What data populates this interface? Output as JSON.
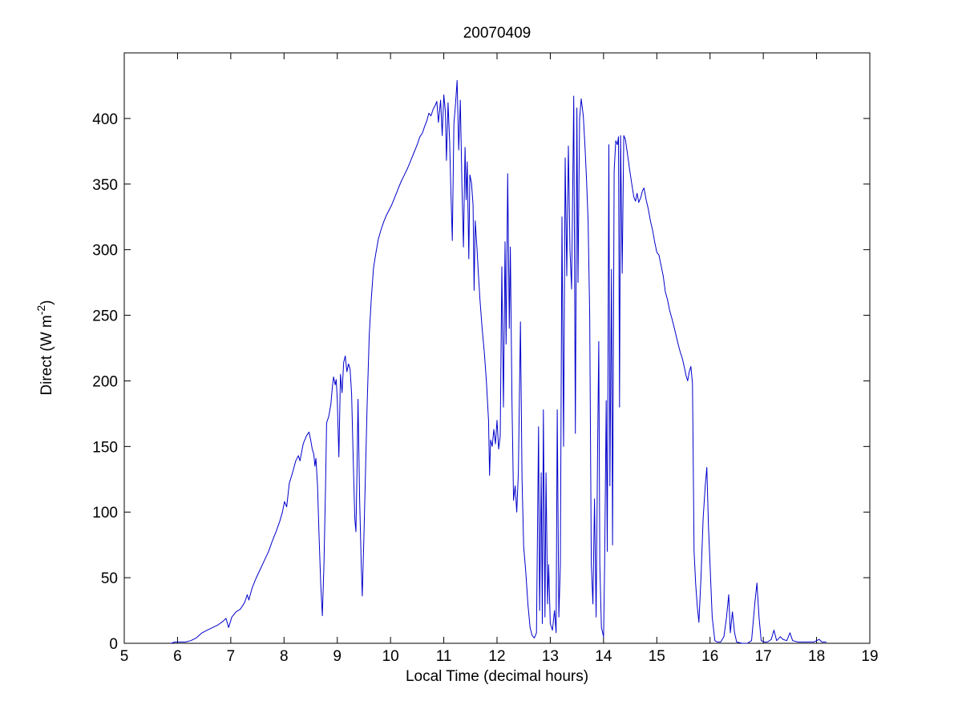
{
  "figure": {
    "title": "20070409",
    "xlabel": "Local Time (decimal hours)",
    "ylabel_parts": {
      "main": "Direct (W m",
      "sup": "-2",
      "end": ")"
    }
  },
  "chart_data": {
    "type": "line",
    "title": "20070409",
    "xlabel": "Local Time (decimal hours)",
    "ylabel": "Direct (W m^-2)",
    "xlim": [
      5,
      19
    ],
    "ylim": [
      0,
      450
    ],
    "x_ticks": [
      5,
      6,
      7,
      8,
      9,
      10,
      11,
      12,
      13,
      14,
      15,
      16,
      17,
      18,
      19
    ],
    "y_ticks": [
      0,
      50,
      100,
      150,
      200,
      250,
      300,
      350,
      400
    ],
    "grid": false,
    "legend": null,
    "line_color": "#0000CC",
    "axis_color": "#000000",
    "background": "#FFFFFF",
    "series": [
      {
        "name": "direct_irradiance",
        "points": [
          [
            5.88,
            0
          ],
          [
            5.95,
            1
          ],
          [
            6.05,
            1
          ],
          [
            6.15,
            1
          ],
          [
            6.25,
            2
          ],
          [
            6.35,
            4
          ],
          [
            6.46,
            8
          ],
          [
            6.56,
            10
          ],
          [
            6.66,
            12
          ],
          [
            6.76,
            14
          ],
          [
            6.86,
            17
          ],
          [
            6.91,
            19
          ],
          [
            6.96,
            12
          ],
          [
            7.02,
            20
          ],
          [
            7.1,
            24
          ],
          [
            7.18,
            26
          ],
          [
            7.26,
            31
          ],
          [
            7.31,
            37
          ],
          [
            7.34,
            33
          ],
          [
            7.4,
            42
          ],
          [
            7.48,
            50
          ],
          [
            7.56,
            57
          ],
          [
            7.64,
            64
          ],
          [
            7.71,
            70
          ],
          [
            7.78,
            78
          ],
          [
            7.85,
            85
          ],
          [
            7.92,
            93
          ],
          [
            7.97,
            100
          ],
          [
            8.01,
            108
          ],
          [
            8.05,
            104
          ],
          [
            8.1,
            122
          ],
          [
            8.16,
            130
          ],
          [
            8.22,
            139
          ],
          [
            8.27,
            143
          ],
          [
            8.3,
            139
          ],
          [
            8.36,
            152
          ],
          [
            8.42,
            158
          ],
          [
            8.47,
            161
          ],
          [
            8.5,
            155
          ],
          [
            8.53,
            148
          ],
          [
            8.56,
            144
          ],
          [
            8.58,
            135
          ],
          [
            8.6,
            141
          ],
          [
            8.63,
            120
          ],
          [
            8.66,
            80
          ],
          [
            8.69,
            45
          ],
          [
            8.72,
            21
          ],
          [
            8.75,
            60
          ],
          [
            8.78,
            120
          ],
          [
            8.8,
            168
          ],
          [
            8.84,
            173
          ],
          [
            8.88,
            182
          ],
          [
            8.91,
            196
          ],
          [
            8.93,
            203
          ],
          [
            8.96,
            197
          ],
          [
            8.98,
            201
          ],
          [
            9.0,
            186
          ],
          [
            9.03,
            142
          ],
          [
            9.06,
            205
          ],
          [
            9.09,
            191
          ],
          [
            9.12,
            214
          ],
          [
            9.15,
            219
          ],
          [
            9.18,
            207
          ],
          [
            9.21,
            213
          ],
          [
            9.24,
            209
          ],
          [
            9.27,
            190
          ],
          [
            9.3,
            140
          ],
          [
            9.33,
            95
          ],
          [
            9.35,
            85
          ],
          [
            9.37,
            130
          ],
          [
            9.39,
            186
          ],
          [
            9.42,
            110
          ],
          [
            9.45,
            60
          ],
          [
            9.47,
            36
          ],
          [
            9.5,
            80
          ],
          [
            9.53,
            130
          ],
          [
            9.56,
            180
          ],
          [
            9.6,
            235
          ],
          [
            9.64,
            263
          ],
          [
            9.68,
            286
          ],
          [
            9.72,
            296
          ],
          [
            9.77,
            308
          ],
          [
            9.82,
            315
          ],
          [
            9.87,
            321
          ],
          [
            9.92,
            326
          ],
          [
            9.97,
            330
          ],
          [
            10.02,
            334
          ],
          [
            10.08,
            340
          ],
          [
            10.14,
            346
          ],
          [
            10.2,
            352
          ],
          [
            10.26,
            357
          ],
          [
            10.32,
            362
          ],
          [
            10.38,
            368
          ],
          [
            10.44,
            374
          ],
          [
            10.5,
            380
          ],
          [
            10.55,
            386
          ],
          [
            10.6,
            389
          ],
          [
            10.64,
            394
          ],
          [
            10.68,
            398
          ],
          [
            10.72,
            404
          ],
          [
            10.76,
            402
          ],
          [
            10.8,
            407
          ],
          [
            10.84,
            410
          ],
          [
            10.87,
            413
          ],
          [
            10.9,
            397
          ],
          [
            10.94,
            414
          ],
          [
            10.97,
            387
          ],
          [
            11.0,
            418
          ],
          [
            11.03,
            405
          ],
          [
            11.05,
            368
          ],
          [
            11.08,
            412
          ],
          [
            11.11,
            382
          ],
          [
            11.13,
            350
          ],
          [
            11.16,
            307
          ],
          [
            11.19,
            396
          ],
          [
            11.22,
            411
          ],
          [
            11.25,
            429
          ],
          [
            11.28,
            376
          ],
          [
            11.31,
            414
          ],
          [
            11.34,
            350
          ],
          [
            11.37,
            302
          ],
          [
            11.4,
            378
          ],
          [
            11.42,
            338
          ],
          [
            11.44,
            367
          ],
          [
            11.47,
            293
          ],
          [
            11.49,
            357
          ],
          [
            11.52,
            351
          ],
          [
            11.55,
            334
          ],
          [
            11.57,
            269
          ],
          [
            11.59,
            322
          ],
          [
            11.62,
            303
          ],
          [
            11.65,
            281
          ],
          [
            11.68,
            262
          ],
          [
            11.72,
            240
          ],
          [
            11.76,
            222
          ],
          [
            11.8,
            200
          ],
          [
            11.84,
            170
          ],
          [
            11.86,
            128
          ],
          [
            11.88,
            155
          ],
          [
            11.91,
            150
          ],
          [
            11.94,
            163
          ],
          [
            11.97,
            152
          ],
          [
            12.0,
            170
          ],
          [
            12.03,
            148
          ],
          [
            12.06,
            158
          ],
          [
            12.09,
            287
          ],
          [
            12.12,
            180
          ],
          [
            12.15,
            306
          ],
          [
            12.17,
            228
          ],
          [
            12.2,
            358
          ],
          [
            12.23,
            240
          ],
          [
            12.25,
            302
          ],
          [
            12.28,
            186
          ],
          [
            12.31,
            109
          ],
          [
            12.34,
            120
          ],
          [
            12.37,
            100
          ],
          [
            12.4,
            130
          ],
          [
            12.44,
            245
          ],
          [
            12.47,
            125
          ],
          [
            12.5,
            74
          ],
          [
            12.54,
            54
          ],
          [
            12.58,
            30
          ],
          [
            12.62,
            12
          ],
          [
            12.66,
            6
          ],
          [
            12.7,
            4
          ],
          [
            12.74,
            8
          ],
          [
            12.78,
            165
          ],
          [
            12.8,
            25
          ],
          [
            12.83,
            130
          ],
          [
            12.85,
            15
          ],
          [
            12.87,
            178
          ],
          [
            12.9,
            20
          ],
          [
            12.92,
            130
          ],
          [
            12.95,
            30
          ],
          [
            12.97,
            60
          ],
          [
            13.0,
            15
          ],
          [
            13.04,
            10
          ],
          [
            13.08,
            25
          ],
          [
            13.11,
            8
          ],
          [
            13.13,
            178
          ],
          [
            13.16,
            20
          ],
          [
            13.19,
            60
          ],
          [
            13.22,
            325
          ],
          [
            13.25,
            150
          ],
          [
            13.28,
            370
          ],
          [
            13.31,
            280
          ],
          [
            13.34,
            379
          ],
          [
            13.37,
            300
          ],
          [
            13.4,
            270
          ],
          [
            13.44,
            417
          ],
          [
            13.47,
            160
          ],
          [
            13.5,
            408
          ],
          [
            13.52,
            275
          ],
          [
            13.55,
            400
          ],
          [
            13.58,
            415
          ],
          [
            13.62,
            402
          ],
          [
            13.65,
            380
          ],
          [
            13.68,
            354
          ],
          [
            13.71,
            322
          ],
          [
            13.74,
            250
          ],
          [
            13.77,
            60
          ],
          [
            13.8,
            30
          ],
          [
            13.83,
            110
          ],
          [
            13.86,
            20
          ],
          [
            13.89,
            150
          ],
          [
            13.91,
            230
          ],
          [
            13.93,
            60
          ],
          [
            13.96,
            12
          ],
          [
            14.0,
            5
          ],
          [
            14.02,
            60
          ],
          [
            14.05,
            185
          ],
          [
            14.07,
            70
          ],
          [
            14.1,
            380
          ],
          [
            14.12,
            120
          ],
          [
            14.15,
            285
          ],
          [
            14.17,
            75
          ],
          [
            14.2,
            360
          ],
          [
            14.23,
            383
          ],
          [
            14.26,
            380
          ],
          [
            14.28,
            386
          ],
          [
            14.3,
            180
          ],
          [
            14.32,
            387
          ],
          [
            14.35,
            282
          ],
          [
            14.38,
            387
          ],
          [
            14.41,
            384
          ],
          [
            14.45,
            373
          ],
          [
            14.49,
            361
          ],
          [
            14.53,
            350
          ],
          [
            14.57,
            340
          ],
          [
            14.6,
            337
          ],
          [
            14.63,
            343
          ],
          [
            14.66,
            336
          ],
          [
            14.7,
            340
          ],
          [
            14.73,
            345
          ],
          [
            14.76,
            347
          ],
          [
            14.8,
            338
          ],
          [
            14.84,
            331
          ],
          [
            14.88,
            322
          ],
          [
            14.92,
            315
          ],
          [
            14.96,
            306
          ],
          [
            15.0,
            298
          ],
          [
            15.04,
            296
          ],
          [
            15.08,
            288
          ],
          [
            15.12,
            280
          ],
          [
            15.16,
            268
          ],
          [
            15.2,
            262
          ],
          [
            15.24,
            254
          ],
          [
            15.28,
            248
          ],
          [
            15.32,
            242
          ],
          [
            15.36,
            235
          ],
          [
            15.4,
            228
          ],
          [
            15.44,
            222
          ],
          [
            15.48,
            217
          ],
          [
            15.52,
            210
          ],
          [
            15.55,
            204
          ],
          [
            15.58,
            200
          ],
          [
            15.61,
            207
          ],
          [
            15.64,
            211
          ],
          [
            15.67,
            198
          ],
          [
            15.7,
            70
          ],
          [
            15.73,
            45
          ],
          [
            15.76,
            28
          ],
          [
            15.79,
            16
          ],
          [
            15.83,
            50
          ],
          [
            15.87,
            95
          ],
          [
            15.91,
            120
          ],
          [
            15.94,
            134
          ],
          [
            15.97,
            90
          ],
          [
            16.0,
            60
          ],
          [
            16.04,
            20
          ],
          [
            16.09,
            2
          ],
          [
            16.14,
            1
          ],
          [
            16.2,
            1
          ],
          [
            16.26,
            5
          ],
          [
            16.31,
            20
          ],
          [
            16.35,
            37
          ],
          [
            16.38,
            8
          ],
          [
            16.42,
            24
          ],
          [
            16.46,
            8
          ],
          [
            16.5,
            1
          ],
          [
            16.6,
            0
          ],
          [
            16.7,
            0
          ],
          [
            16.78,
            2
          ],
          [
            16.84,
            30
          ],
          [
            16.88,
            46
          ],
          [
            16.92,
            20
          ],
          [
            16.96,
            2
          ],
          [
            17.02,
            1
          ],
          [
            17.08,
            1
          ],
          [
            17.15,
            3
          ],
          [
            17.2,
            10
          ],
          [
            17.25,
            2
          ],
          [
            17.32,
            5
          ],
          [
            17.37,
            3
          ],
          [
            17.44,
            2
          ],
          [
            17.5,
            8
          ],
          [
            17.55,
            2
          ],
          [
            17.65,
            1
          ],
          [
            17.8,
            1
          ],
          [
            17.95,
            1
          ],
          [
            18.05,
            3
          ],
          [
            18.1,
            1
          ],
          [
            18.18,
            1
          ]
        ]
      }
    ]
  }
}
